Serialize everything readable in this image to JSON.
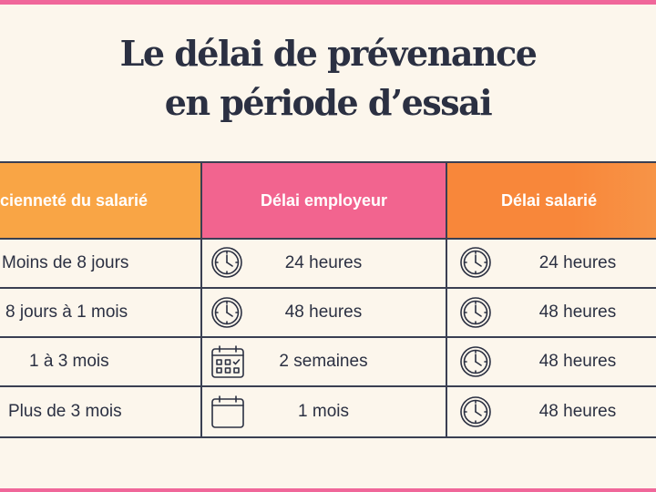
{
  "title": {
    "line1": "Le délai de prévenance",
    "line2": "en période d’essai"
  },
  "table": {
    "headers": [
      "cienneté du salarié",
      "Délai employeur",
      "Délai salarié"
    ],
    "rows": [
      {
        "seniority": "Moins de 8 jours",
        "employer": "24 heures",
        "employer_icon": "clock-icon",
        "employee": "24 heures",
        "employee_icon": "clock-icon"
      },
      {
        "seniority": "8 jours à 1 mois",
        "employer": "48 heures",
        "employer_icon": "clock-icon",
        "employee": "48 heures",
        "employee_icon": "clock-icon"
      },
      {
        "seniority": "1 à 3 mois",
        "employer": "2 semaines",
        "employer_icon": "calendar-week-icon",
        "employee": "48 heures",
        "employee_icon": "clock-icon"
      },
      {
        "seniority": "Plus de 3 mois",
        "employer": "1 mois",
        "employer_icon": "calendar-month-icon",
        "employee": "48 heures",
        "employee_icon": "clock-icon"
      }
    ]
  },
  "colors": {
    "background": "#fcf6ec",
    "accent_pink": "#f0679a",
    "header_yellow": "#f9a545",
    "header_pink": "#f2648f",
    "header_orange": "#f8873a",
    "text": "#2b3042"
  }
}
